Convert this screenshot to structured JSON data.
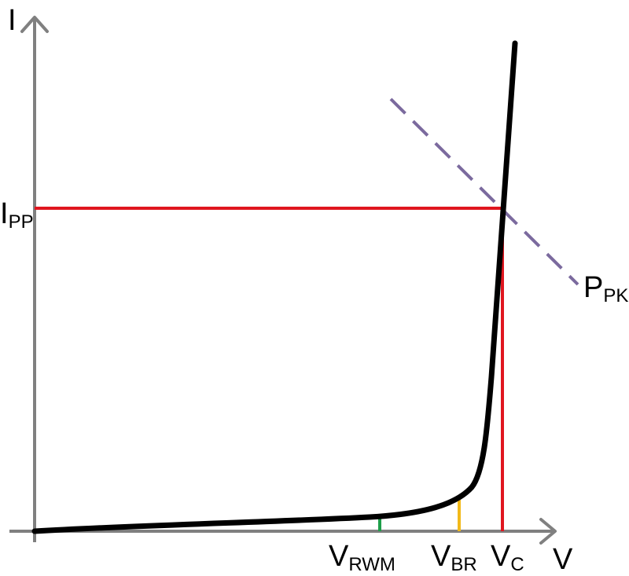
{
  "axes": {
    "x_label": "V",
    "y_label": "I",
    "color": "#808080"
  },
  "labels": {
    "ipp": {
      "main": "I",
      "sub": "PP"
    },
    "ppk": {
      "main": "P",
      "sub": "PK"
    },
    "vrwm": {
      "main": "V",
      "sub": "RWM"
    },
    "vbr": {
      "main": "V",
      "sub": "BR"
    },
    "vc": {
      "main": "V",
      "sub": "C"
    }
  },
  "colors": {
    "curve": "#000000",
    "ipp_vc_lines": "#e0161f",
    "ppk_line": "#7b6a9e",
    "vrwm_marker": "#1e9e4a",
    "vbr_marker": "#f2b91a"
  }
}
